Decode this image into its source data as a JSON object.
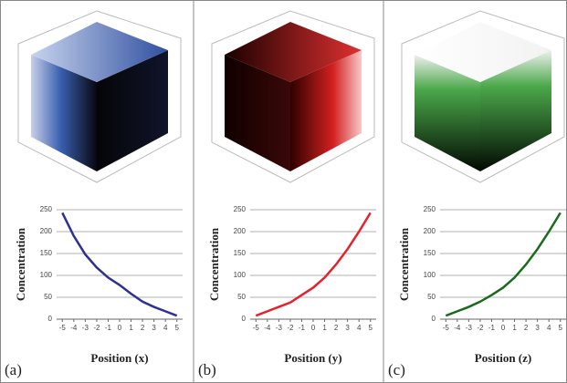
{
  "chart_data": [
    {
      "type": "line",
      "label": "(a)",
      "x_label": "Position (x)",
      "y_label": "Concentration",
      "x": [
        -5,
        -4,
        -3,
        -2,
        -1,
        0,
        1,
        2,
        3,
        4,
        5
      ],
      "series": [
        {
          "color": "#2e3192",
          "values": [
            243,
            190,
            148,
            118,
            95,
            78,
            58,
            40,
            28,
            18,
            8
          ]
        }
      ],
      "xlim": [
        -5.5,
        5.5
      ],
      "xticks": [
        -5,
        -4,
        -3,
        -2,
        -1,
        0,
        1,
        2,
        3,
        4,
        5
      ],
      "ylim": [
        0,
        250
      ],
      "yticks": [
        0,
        50,
        100,
        150,
        200,
        250
      ],
      "grid": true
    },
    {
      "type": "line",
      "label": "(b)",
      "x_label": "Position (y)",
      "y_label": "Concentration",
      "x": [
        -5,
        -4,
        -3,
        -2,
        -1,
        0,
        1,
        2,
        3,
        4,
        5
      ],
      "series": [
        {
          "color": "#e8202a",
          "values": [
            8,
            18,
            28,
            38,
            55,
            72,
            95,
            125,
            160,
            200,
            243
          ]
        }
      ],
      "xlim": [
        -5.5,
        5.5
      ],
      "xticks": [
        -5,
        -4,
        -3,
        -2,
        -1,
        0,
        1,
        2,
        3,
        4,
        5
      ],
      "ylim": [
        0,
        250
      ],
      "yticks": [
        0,
        50,
        100,
        150,
        200,
        250
      ],
      "grid": true
    },
    {
      "type": "line",
      "label": "(c)",
      "x_label": "Position (z)",
      "y_label": "Concentration",
      "x": [
        -5,
        -4,
        -3,
        -2,
        -1,
        0,
        1,
        2,
        3,
        4,
        5
      ],
      "series": [
        {
          "color": "#1a6b1a",
          "values": [
            8,
            18,
            28,
            40,
            55,
            72,
            95,
            125,
            160,
            200,
            243
          ]
        }
      ],
      "xlim": [
        -5.5,
        5.5
      ],
      "xticks": [
        -5,
        -4,
        -3,
        -2,
        -1,
        0,
        1,
        2,
        3,
        4,
        5
      ],
      "ylim": [
        0,
        250
      ],
      "yticks": [
        0,
        50,
        100,
        150,
        200,
        250
      ],
      "grid": true
    }
  ]
}
